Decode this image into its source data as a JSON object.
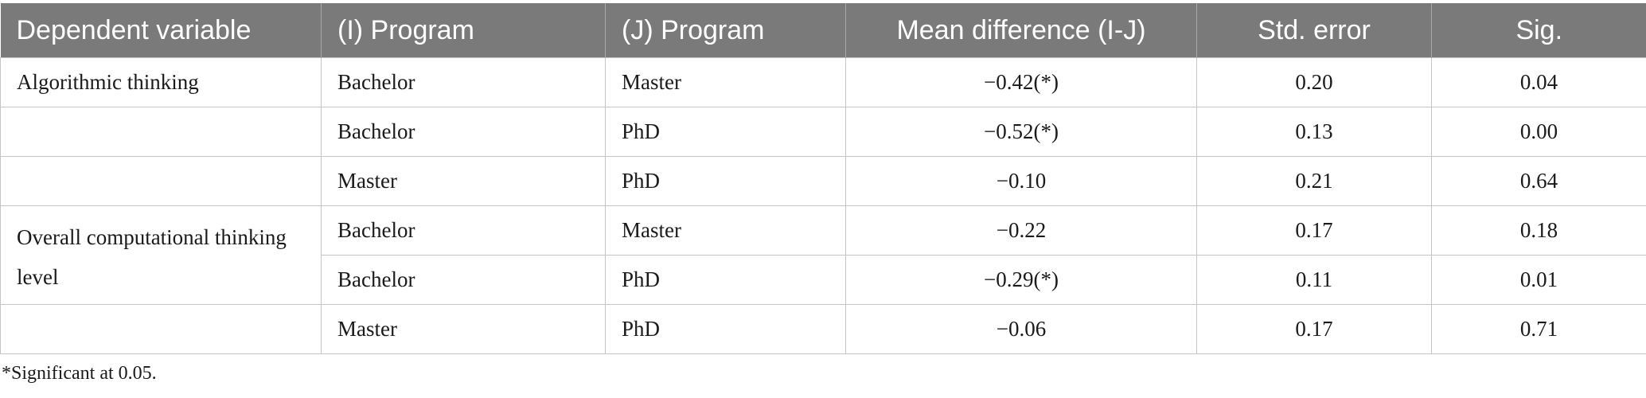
{
  "table": {
    "headers": [
      "Dependent variable",
      "(I) Program",
      "(J) Program",
      "Mean difference (I-J)",
      "Std. error",
      "Sig."
    ],
    "rows": [
      {
        "dependent": "Algorithmic thinking",
        "i_program": "Bachelor",
        "j_program": "Master",
        "mean_diff": "−0.42(*)",
        "std_error": "0.20",
        "sig": "0.04"
      },
      {
        "dependent": "",
        "i_program": "Bachelor",
        "j_program": "PhD",
        "mean_diff": "−0.52(*)",
        "std_error": "0.13",
        "sig": "0.00"
      },
      {
        "dependent": "",
        "i_program": "Master",
        "j_program": "PhD",
        "mean_diff": "−0.10",
        "std_error": "0.21",
        "sig": "0.64"
      },
      {
        "dependent": "Overall computational thinking level",
        "i_program": "Bachelor",
        "j_program": "Master",
        "mean_diff": "−0.22",
        "std_error": "0.17",
        "sig": "0.18"
      },
      {
        "dependent": "",
        "i_program": "Bachelor",
        "j_program": "PhD",
        "mean_diff": "−0.29(*)",
        "std_error": "0.11",
        "sig": "0.01"
      },
      {
        "dependent": "",
        "i_program": "Master",
        "j_program": "PhD",
        "mean_diff": "−0.06",
        "std_error": "0.17",
        "sig": "0.71"
      }
    ]
  },
  "footnote": "*Significant at 0.05.",
  "colors": {
    "header_bg": "#7a7a7a",
    "header_text": "#ffffff",
    "border": "#c4c4c4"
  }
}
